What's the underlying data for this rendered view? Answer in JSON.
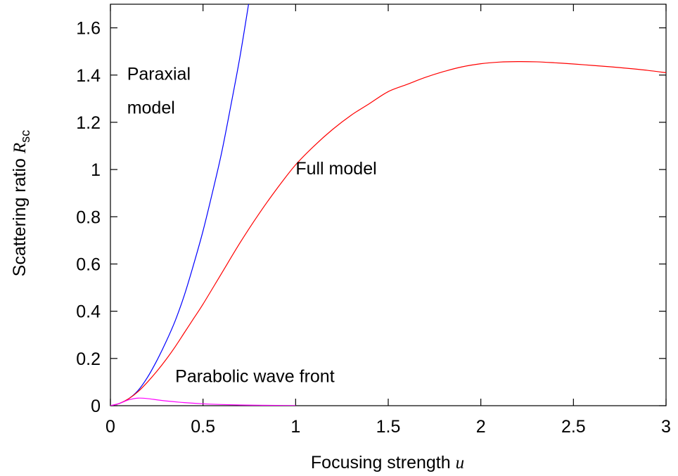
{
  "chart_data": {
    "type": "line",
    "xlabel_text": "Focusing strength ",
    "xlabel_var": "u",
    "ylabel_text": "Scattering ratio ",
    "ylabel_var": "R",
    "ylabel_sub": "sc",
    "xlim": [
      0,
      3
    ],
    "ylim": [
      0,
      1.7
    ],
    "x_ticks": [
      0,
      0.5,
      1,
      1.5,
      2,
      2.5,
      3
    ],
    "x_tick_labels": [
      "0",
      "0.5",
      "1",
      "1.5",
      "2",
      "2.5",
      "3"
    ],
    "y_ticks": [
      0,
      0.2,
      0.4,
      0.6,
      0.8,
      1.0,
      1.2,
      1.4,
      1.6
    ],
    "y_tick_labels": [
      "0",
      "0.2",
      "0.4",
      "0.6",
      "0.8",
      "1",
      "1.2",
      "1.4",
      "1.6"
    ],
    "grid": false,
    "series": [
      {
        "label": "paraxial",
        "color": "#0000ff",
        "x": [
          0,
          0.05,
          0.1,
          0.15,
          0.2,
          0.25,
          0.3,
          0.35,
          0.4,
          0.45,
          0.5,
          0.55,
          0.6,
          0.65,
          0.7,
          0.75
        ],
        "y": [
          0,
          0.01,
          0.03,
          0.065,
          0.12,
          0.19,
          0.27,
          0.36,
          0.47,
          0.6,
          0.74,
          0.9,
          1.07,
          1.27,
          1.48,
          1.72
        ]
      },
      {
        "label": "full",
        "color": "#ff0000",
        "x": [
          0,
          0.05,
          0.1,
          0.15,
          0.2,
          0.25,
          0.3,
          0.35,
          0.4,
          0.45,
          0.5,
          0.6,
          0.7,
          0.8,
          0.9,
          1.0,
          1.1,
          1.2,
          1.3,
          1.4,
          1.5,
          1.6,
          1.7,
          1.8,
          1.9,
          2.0,
          2.1,
          2.2,
          2.3,
          2.4,
          2.5,
          2.6,
          2.7,
          2.8,
          2.9,
          3.0
        ],
        "y": [
          0,
          0.01,
          0.03,
          0.06,
          0.1,
          0.145,
          0.195,
          0.25,
          0.31,
          0.37,
          0.43,
          0.56,
          0.69,
          0.81,
          0.92,
          1.02,
          1.1,
          1.17,
          1.23,
          1.28,
          1.33,
          1.36,
          1.39,
          1.415,
          1.435,
          1.448,
          1.455,
          1.457,
          1.456,
          1.452,
          1.447,
          1.441,
          1.435,
          1.428,
          1.42,
          1.41
        ]
      },
      {
        "label": "parabolic",
        "color": "#ff00ff",
        "x": [
          0,
          0.05,
          0.1,
          0.15,
          0.2,
          0.25,
          0.3,
          0.4,
          0.5,
          0.6,
          0.7,
          0.8,
          0.9,
          1.0
        ],
        "y": [
          0,
          0.01,
          0.025,
          0.032,
          0.03,
          0.025,
          0.02,
          0.013,
          0.008,
          0.005,
          0.003,
          0.002,
          0.001,
          0.0005
        ]
      }
    ],
    "annotations": [
      {
        "name": "paraxial-label",
        "lines": [
          "Paraxial",
          "model"
        ],
        "x": 0.09,
        "y": 1.38
      },
      {
        "name": "full-label",
        "lines": [
          "Full model"
        ],
        "x": 1.0,
        "y": 0.98
      },
      {
        "name": "parabolic-label",
        "lines": [
          "Parabolic wave front"
        ],
        "x": 0.35,
        "y": 0.1
      }
    ]
  }
}
